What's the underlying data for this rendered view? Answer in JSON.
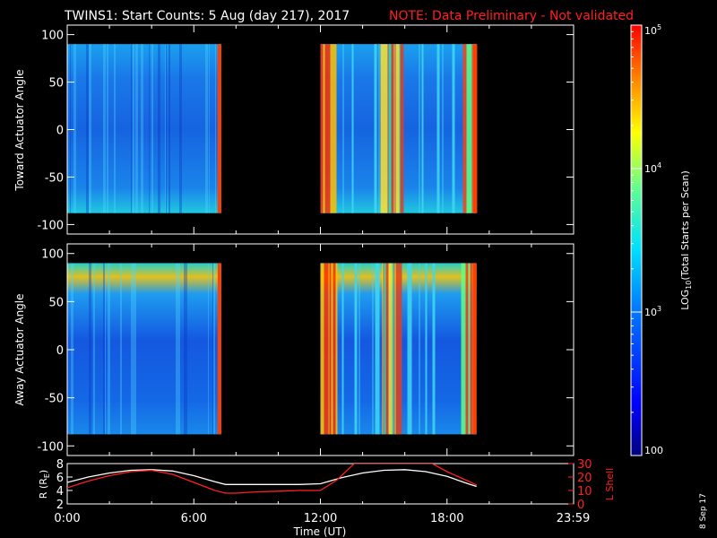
{
  "title": "TWINS1: Start Counts:  5 Aug (day 217), 2017",
  "note": "NOTE: Data Preliminary - Not validated",
  "date_stamp": "8 Sep 17",
  "colors": {
    "background": "#000000",
    "note": "#ff2020",
    "r_line": "#ffffff",
    "lshell_line": "#ff2020"
  },
  "chart_data": [
    {
      "type": "heatmap",
      "name": "toward",
      "ylabel": "Toward Actuator Angle",
      "ylim": [
        -110,
        110
      ],
      "yticks": [
        -100,
        -50,
        0,
        50,
        100
      ],
      "xlim": [
        0,
        24
      ],
      "data_x_ranges": [
        [
          0,
          7.3
        ],
        [
          12,
          19.4
        ]
      ],
      "data_y_range": [
        -88,
        90
      ],
      "zscale": "log",
      "zlim": [
        100,
        100000
      ]
    },
    {
      "type": "heatmap",
      "name": "away",
      "ylabel": "Away Actuator Angle",
      "ylim": [
        -110,
        110
      ],
      "yticks": [
        -100,
        -50,
        0,
        50,
        100
      ],
      "xlim": [
        0,
        24
      ],
      "data_x_ranges": [
        [
          0,
          7.3
        ],
        [
          12,
          19.4
        ]
      ],
      "data_y_range": [
        -88,
        90
      ],
      "zscale": "log",
      "zlim": [
        100,
        100000
      ]
    },
    {
      "type": "line",
      "name": "orbit",
      "ylabel_left": "R (R",
      "ylabel_left_sub": "E",
      "ylabel_left_end": ")",
      "ylabel_right": "L Shell",
      "xlabel": "Time (UT)",
      "xticks": [
        "0:00",
        "6:00",
        "12:00",
        "18:00",
        "23:59"
      ],
      "xtick_values": [
        0,
        6,
        12,
        18,
        23.98
      ],
      "xlim": [
        0,
        24
      ],
      "ylim_left": [
        2,
        8
      ],
      "yticks_left": [
        2,
        4,
        6,
        8
      ],
      "ylim_right": [
        0,
        30
      ],
      "yticks_right": [
        0,
        10,
        20,
        30
      ],
      "series": [
        {
          "axis": "left",
          "x": [
            0,
            1,
            2,
            3,
            4,
            5,
            6,
            7,
            7.5,
            8,
            9,
            10,
            11,
            12,
            13,
            14,
            15,
            16,
            17,
            18,
            19,
            19.4
          ],
          "y": [
            5.2,
            6.0,
            6.6,
            7.0,
            7.1,
            6.9,
            6.2,
            5.3,
            4.9,
            4.9,
            4.9,
            4.9,
            4.9,
            5.0,
            5.9,
            6.6,
            7.0,
            7.1,
            6.8,
            6.1,
            5.0,
            4.6
          ]
        },
        {
          "axis": "right",
          "x": [
            0,
            1,
            2,
            3,
            4,
            5,
            6,
            7,
            7.5,
            8,
            9,
            10,
            11,
            12,
            12.8,
            13.6,
            17.3,
            18,
            19,
            19.4
          ],
          "y": [
            12,
            17,
            21,
            24,
            25,
            22,
            16,
            10,
            8,
            8,
            9,
            9.5,
            10,
            10,
            18,
            30,
            30,
            24,
            17,
            14
          ]
        }
      ]
    }
  ],
  "colorbar": {
    "label_main": "LOG",
    "label_sub": "10",
    "label_rest": "(Total Starts per Scan)",
    "ticks": [
      {
        "value": 100,
        "base": "100",
        "exp": ""
      },
      {
        "value": 1000,
        "base": "10",
        "exp": "3"
      },
      {
        "value": 10000,
        "base": "10",
        "exp": "4"
      },
      {
        "value": 100000,
        "base": "10",
        "exp": "5"
      }
    ]
  }
}
